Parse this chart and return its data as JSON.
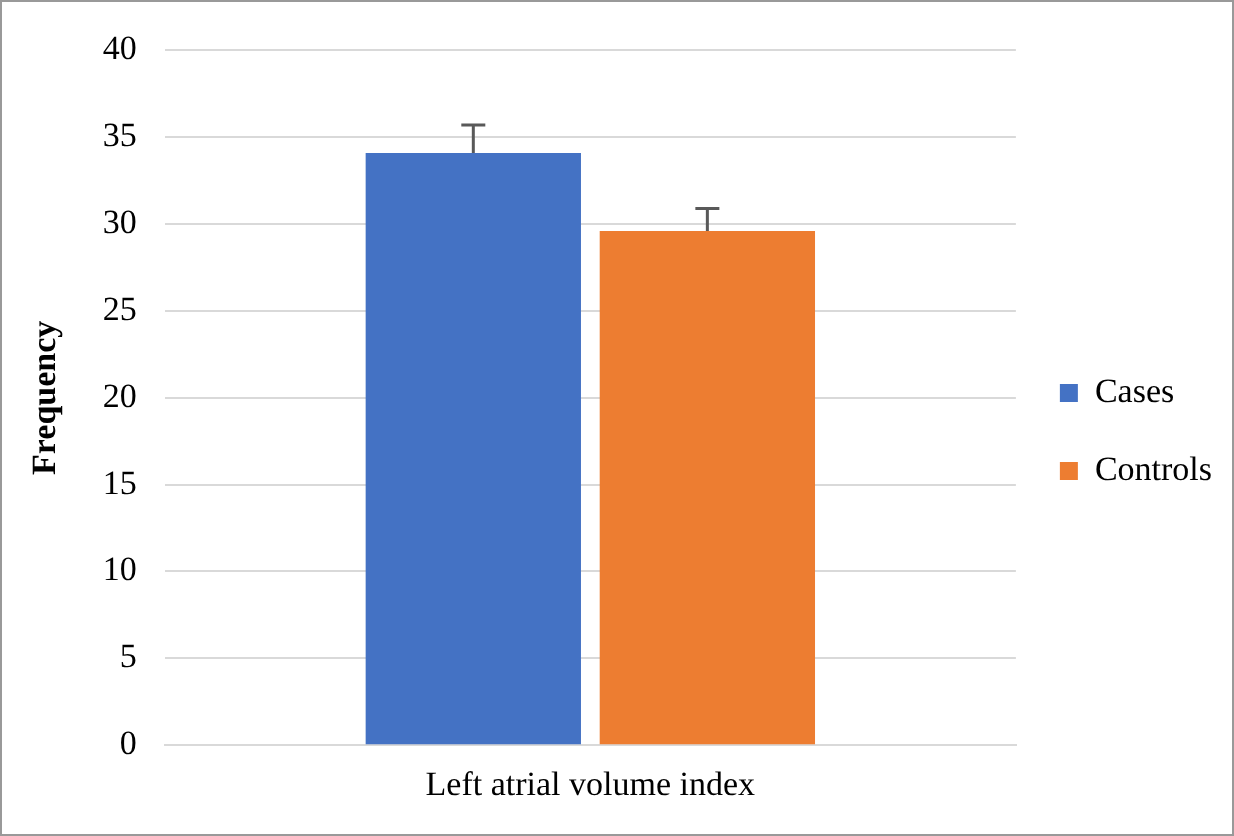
{
  "chart_data": {
    "type": "bar",
    "ylabel": "Frequency",
    "categories": [
      "Left atrial volume index"
    ],
    "series": [
      {
        "name": "Cases",
        "color": "#4472c4",
        "values": [
          34.1
        ],
        "errors": [
          [
            34.1,
            35.7
          ]
        ]
      },
      {
        "name": "Controls",
        "color": "#ed7d31",
        "values": [
          29.6
        ],
        "errors": [
          [
            29.6,
            30.9
          ]
        ]
      }
    ],
    "ylim": [
      0,
      40
    ],
    "yticks": [
      0,
      5,
      10,
      15,
      20,
      25,
      30,
      35,
      40
    ],
    "grid": "y",
    "legend": "right"
  }
}
